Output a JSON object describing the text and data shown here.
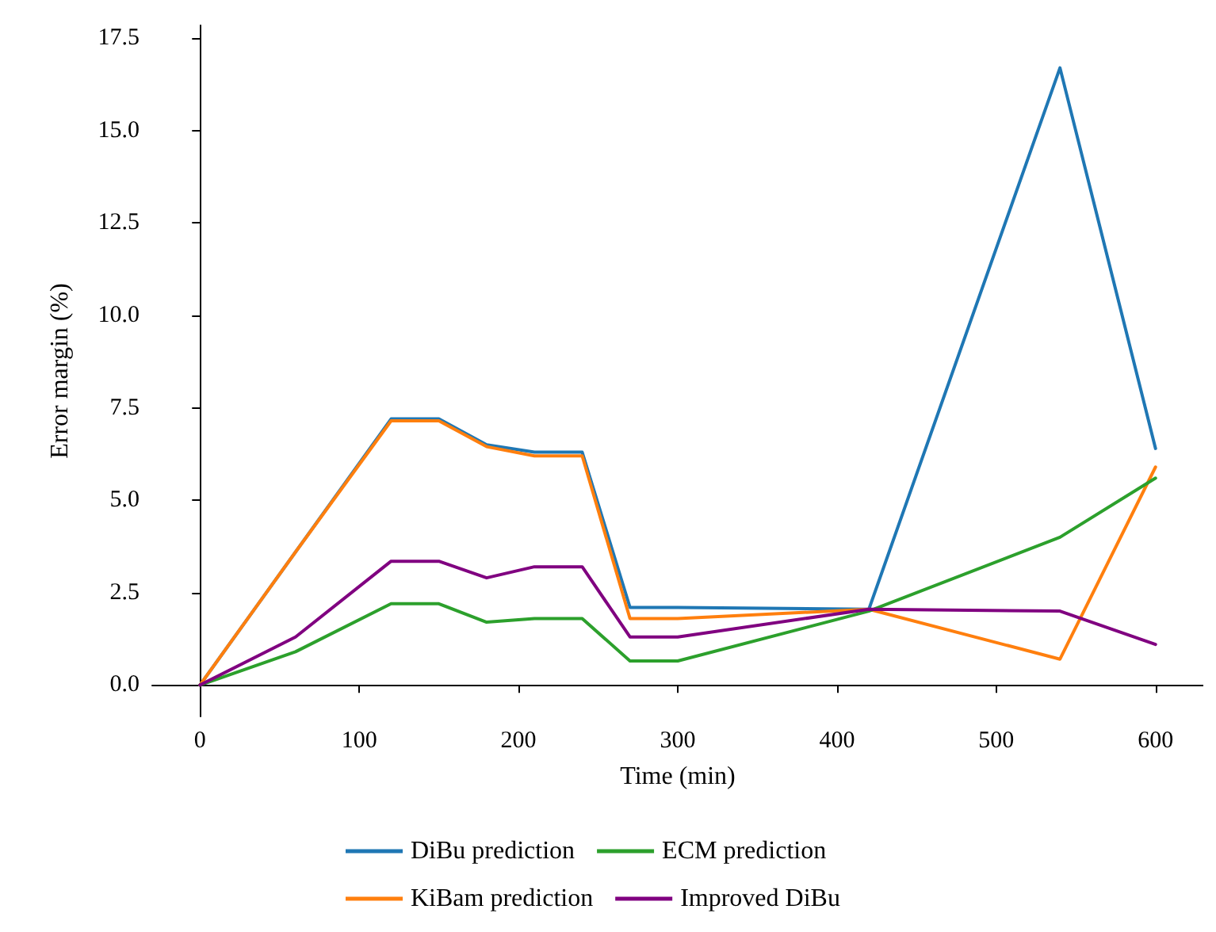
{
  "chart_data": {
    "type": "line",
    "xlabel": "Time (min)",
    "ylabel": "Error margin (%)",
    "x": [
      0,
      60,
      120,
      150,
      180,
      210,
      240,
      270,
      300,
      420,
      540,
      600
    ],
    "series": [
      {
        "name": "DiBu prediction",
        "color": "#1f77b4",
        "values": [
          0,
          3.6,
          7.2,
          7.2,
          6.5,
          6.3,
          6.3,
          2.1,
          2.1,
          2.05,
          16.7,
          6.4
        ]
      },
      {
        "name": "KiBam prediction",
        "color": "#ff7f0e",
        "values": [
          0,
          3.6,
          7.15,
          7.15,
          6.45,
          6.2,
          6.2,
          1.8,
          1.8,
          2.05,
          0.7,
          5.9
        ]
      },
      {
        "name": "ECM prediction",
        "color": "#2ca02c",
        "values": [
          0,
          0.9,
          2.2,
          2.2,
          1.7,
          1.8,
          1.8,
          0.65,
          0.65,
          2.0,
          4.0,
          5.6
        ]
      },
      {
        "name": "Improved DiBu",
        "color": "#800080",
        "values": [
          0,
          1.3,
          3.35,
          3.35,
          2.9,
          3.2,
          3.2,
          1.3,
          1.3,
          2.05,
          2.0,
          1.1
        ]
      }
    ],
    "xlim": [
      -30,
      630
    ],
    "xticks": [
      0,
      100,
      200,
      300,
      400,
      500,
      600
    ],
    "ylim": [
      -0.85,
      17.85
    ],
    "yticks": [
      {
        "value": 0,
        "label": "0.0"
      },
      {
        "value": 2.5,
        "label": "2.5"
      },
      {
        "value": 5,
        "label": "5.0"
      },
      {
        "value": 7.5,
        "label": "7.5"
      },
      {
        "value": 10,
        "label": "10.0"
      },
      {
        "value": 12.5,
        "label": "12.5"
      },
      {
        "value": 15,
        "label": "15.0"
      },
      {
        "value": 17.5,
        "label": "17.5"
      }
    ],
    "grid": false,
    "legend": "bottom",
    "marker": "none",
    "line_style": "solid"
  }
}
